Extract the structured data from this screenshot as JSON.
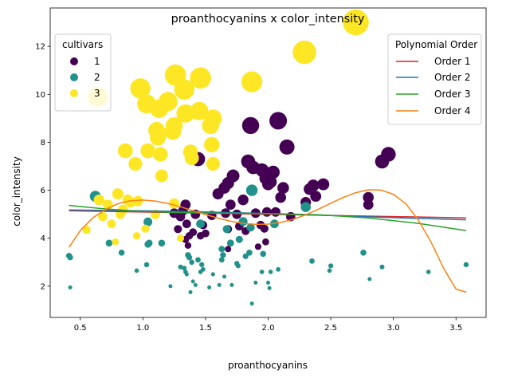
{
  "chart_data": {
    "type": "scatter",
    "title": "proanthocyanins x color_intensity",
    "xlabel": "proanthocyanins",
    "ylabel": "color_intensity",
    "xlim": [
      0.26,
      3.74
    ],
    "ylim": [
      0.7,
      13.6
    ],
    "xticks": [
      0.5,
      1.0,
      1.5,
      2.0,
      2.5,
      3.0,
      3.5
    ],
    "yticks": [
      2,
      4,
      6,
      8,
      10,
      12
    ],
    "xtick_labels": [
      "0.5",
      "1.0",
      "1.5",
      "2.0",
      "2.5",
      "3.0",
      "3.5"
    ],
    "ytick_labels": [
      "2",
      "4",
      "6",
      "8",
      "10",
      "12"
    ],
    "grid": false,
    "marker_size_encoding": "size varies with color_intensity",
    "colors": {
      "1": "#440154",
      "2": "#21918c",
      "3": "#fde725"
    },
    "legend_cultivars": {
      "title": "cultivars",
      "placement": "top-left",
      "entries": [
        {
          "label": "1",
          "color": "#440154"
        },
        {
          "label": "2",
          "color": "#21918c"
        },
        {
          "label": "3",
          "color": "#fde725"
        }
      ]
    },
    "legend_poly": {
      "title": "Polynomial Order",
      "placement": "top-right",
      "entries": [
        {
          "label": "Order 1",
          "color": "#d62728"
        },
        {
          "label": "Order 2",
          "color": "#1f77b4"
        },
        {
          "label": "Order 3",
          "color": "#2ca02c"
        },
        {
          "label": "Order 4",
          "color": "#ff7f0e"
        }
      ]
    },
    "fit_lines": [
      {
        "name": "Order 1",
        "color": "#d62728",
        "x": [
          0.41,
          3.58
        ],
        "y": [
          5.15,
          4.85
        ]
      },
      {
        "name": "Order 2",
        "color": "#1f77b4",
        "x": [
          0.41,
          1.0,
          1.5,
          2.0,
          2.5,
          3.0,
          3.58
        ],
        "y": [
          5.18,
          5.15,
          5.1,
          5.03,
          4.95,
          4.86,
          4.77
        ]
      },
      {
        "name": "Order 3",
        "color": "#2ca02c",
        "x": [
          0.41,
          0.7,
          1.0,
          1.3,
          1.6,
          2.0,
          2.4,
          2.8,
          3.2,
          3.58
        ],
        "y": [
          5.37,
          5.22,
          5.12,
          5.07,
          5.05,
          5.03,
          4.98,
          4.85,
          4.62,
          4.32
        ]
      },
      {
        "name": "Order 4",
        "color": "#ff7f0e",
        "x": [
          0.41,
          0.5,
          0.6,
          0.7,
          0.8,
          0.9,
          1.0,
          1.1,
          1.2,
          1.3,
          1.4,
          1.5,
          1.6,
          1.7,
          1.8,
          1.9,
          2.0,
          2.1,
          2.2,
          2.3,
          2.4,
          2.5,
          2.6,
          2.7,
          2.8,
          2.9,
          3.0,
          3.1,
          3.2,
          3.3,
          3.4,
          3.5,
          3.58
        ],
        "y": [
          3.62,
          4.32,
          4.85,
          5.2,
          5.44,
          5.56,
          5.59,
          5.55,
          5.45,
          5.31,
          5.15,
          4.99,
          4.84,
          4.71,
          4.62,
          4.58,
          4.59,
          4.66,
          4.79,
          4.98,
          5.21,
          5.46,
          5.7,
          5.9,
          6.02,
          6.01,
          5.83,
          5.43,
          4.75,
          3.85,
          2.75,
          1.88,
          1.75
        ]
      }
    ],
    "series": [
      {
        "name": "1",
        "color": "#440154",
        "points": [
          [
            1.25,
            5.05
          ],
          [
            1.28,
            4.38
          ],
          [
            1.3,
            4.9
          ],
          [
            1.32,
            5.15
          ],
          [
            1.35,
            4.6
          ],
          [
            1.37,
            4.1
          ],
          [
            1.36,
            3.7
          ],
          [
            1.34,
            3.95
          ],
          [
            1.4,
            4.25
          ],
          [
            1.42,
            5.0
          ],
          [
            1.44,
            7.3
          ],
          [
            1.46,
            4.1
          ],
          [
            1.48,
            4.55
          ],
          [
            1.5,
            4.2
          ],
          [
            1.34,
            5.4
          ],
          [
            1.55,
            4.95
          ],
          [
            1.6,
            5.85
          ],
          [
            1.65,
            6.1
          ],
          [
            1.66,
            5.05
          ],
          [
            1.68,
            6.3
          ],
          [
            1.7,
            5.4
          ],
          [
            1.72,
            6.6
          ],
          [
            1.68,
            4.38
          ],
          [
            1.68,
            3.55
          ],
          [
            1.7,
            3.8
          ],
          [
            1.75,
            5.0
          ],
          [
            1.77,
            4.5
          ],
          [
            1.8,
            5.6
          ],
          [
            1.82,
            4.3
          ],
          [
            1.84,
            7.2
          ],
          [
            1.86,
            8.7
          ],
          [
            1.88,
            6.95
          ],
          [
            1.9,
            5.05
          ],
          [
            1.92,
            3.65
          ],
          [
            1.94,
            4.55
          ],
          [
            1.96,
            6.8
          ],
          [
            1.98,
            6.5
          ],
          [
            1.99,
            5.1
          ],
          [
            2.0,
            6.25
          ],
          [
            2.02,
            6.35
          ],
          [
            2.04,
            6.75
          ],
          [
            2.06,
            5.1
          ],
          [
            2.08,
            8.9
          ],
          [
            2.1,
            5.7
          ],
          [
            2.12,
            6.1
          ],
          [
            2.15,
            7.8
          ],
          [
            2.18,
            4.9
          ],
          [
            1.95,
            6.85
          ],
          [
            1.98,
            3.85
          ],
          [
            1.97,
            4.4
          ],
          [
            2.3,
            5.5
          ],
          [
            2.33,
            6.05
          ],
          [
            2.36,
            6.2
          ],
          [
            2.38,
            5.75
          ],
          [
            2.44,
            6.25
          ],
          [
            2.8,
            5.4
          ],
          [
            2.8,
            5.7
          ],
          [
            2.91,
            7.2
          ],
          [
            2.96,
            7.5
          ]
        ]
      },
      {
        "name": "2",
        "color": "#21918c",
        "points": [
          [
            0.41,
            3.27
          ],
          [
            0.42,
            3.2
          ],
          [
            0.42,
            1.95
          ],
          [
            0.62,
            5.75
          ],
          [
            0.73,
            3.8
          ],
          [
            0.83,
            3.4
          ],
          [
            0.95,
            2.65
          ],
          [
            1.03,
            2.9
          ],
          [
            1.04,
            3.75
          ],
          [
            1.05,
            3.8
          ],
          [
            1.04,
            4.68
          ],
          [
            1.15,
            3.8
          ],
          [
            1.22,
            2.0
          ],
          [
            1.3,
            2.8
          ],
          [
            1.33,
            2.75
          ],
          [
            1.34,
            2.6
          ],
          [
            1.35,
            2.5
          ],
          [
            1.36,
            3.3
          ],
          [
            1.37,
            3.2
          ],
          [
            1.38,
            1.75
          ],
          [
            1.39,
            3.0
          ],
          [
            1.4,
            2.2
          ],
          [
            1.42,
            2.05
          ],
          [
            1.44,
            3.1
          ],
          [
            1.46,
            2.6
          ],
          [
            1.47,
            2.9
          ],
          [
            1.48,
            2.7
          ],
          [
            1.46,
            4.6
          ],
          [
            1.53,
            1.95
          ],
          [
            1.56,
            2.5
          ],
          [
            1.61,
            2.05
          ],
          [
            1.63,
            3.1
          ],
          [
            1.63,
            3.55
          ],
          [
            1.64,
            3.3
          ],
          [
            1.65,
            2.4
          ],
          [
            1.67,
            4.38
          ],
          [
            1.7,
            3.8
          ],
          [
            1.71,
            2.05
          ],
          [
            1.75,
            2.95
          ],
          [
            1.76,
            2.85
          ],
          [
            1.77,
            3.95
          ],
          [
            1.8,
            4.7
          ],
          [
            1.82,
            3.25
          ],
          [
            1.85,
            3.4
          ],
          [
            1.86,
            4.45
          ],
          [
            1.87,
            6.0
          ],
          [
            1.87,
            1.28
          ],
          [
            1.9,
            2.15
          ],
          [
            1.95,
            2.6
          ],
          [
            1.96,
            3.35
          ],
          [
            2.0,
            2.15
          ],
          [
            2.01,
            1.92
          ],
          [
            2.02,
            2.6
          ],
          [
            2.05,
            4.6
          ],
          [
            2.08,
            2.7
          ],
          [
            2.3,
            5.3
          ],
          [
            2.35,
            3.05
          ],
          [
            2.49,
            2.65
          ],
          [
            2.5,
            2.85
          ],
          [
            2.76,
            3.4
          ],
          [
            2.81,
            2.3
          ],
          [
            2.91,
            2.8
          ],
          [
            3.28,
            2.6
          ],
          [
            3.58,
            2.9
          ]
        ]
      },
      {
        "name": "3",
        "color": "#fde725",
        "points": [
          [
            0.55,
            4.35
          ],
          [
            0.64,
            9.9
          ],
          [
            0.65,
            5.6
          ],
          [
            0.68,
            4.9
          ],
          [
            0.72,
            5.4
          ],
          [
            0.75,
            4.6
          ],
          [
            0.78,
            3.85
          ],
          [
            0.8,
            5.85
          ],
          [
            0.82,
            5.0
          ],
          [
            0.84,
            5.2
          ],
          [
            0.86,
            7.65
          ],
          [
            0.88,
            5.6
          ],
          [
            0.9,
            5.5
          ],
          [
            0.94,
            7.1
          ],
          [
            0.95,
            4.1
          ],
          [
            0.96,
            5.55
          ],
          [
            0.98,
            10.25
          ],
          [
            1.02,
            4.4
          ],
          [
            1.03,
            9.6
          ],
          [
            1.04,
            7.65
          ],
          [
            1.1,
            5.0
          ],
          [
            1.11,
            8.5
          ],
          [
            1.12,
            8.2
          ],
          [
            1.13,
            9.4
          ],
          [
            1.14,
            7.5
          ],
          [
            1.15,
            6.6
          ],
          [
            1.2,
            9.7
          ],
          [
            1.24,
            8.45
          ],
          [
            1.25,
            8.7
          ],
          [
            1.25,
            5.45
          ],
          [
            1.26,
            10.8
          ],
          [
            1.3,
            4.0
          ],
          [
            1.33,
            10.2
          ],
          [
            1.34,
            9.2
          ],
          [
            1.38,
            7.6
          ],
          [
            1.39,
            7.35
          ],
          [
            1.45,
            9.3
          ],
          [
            1.46,
            10.68
          ],
          [
            1.54,
            8.7
          ],
          [
            1.56,
            9.0
          ],
          [
            1.56,
            7.1
          ],
          [
            1.55,
            7.9
          ],
          [
            1.87,
            10.52
          ],
          [
            2.29,
            11.75
          ],
          [
            2.7,
            13.0
          ]
        ]
      }
    ]
  }
}
